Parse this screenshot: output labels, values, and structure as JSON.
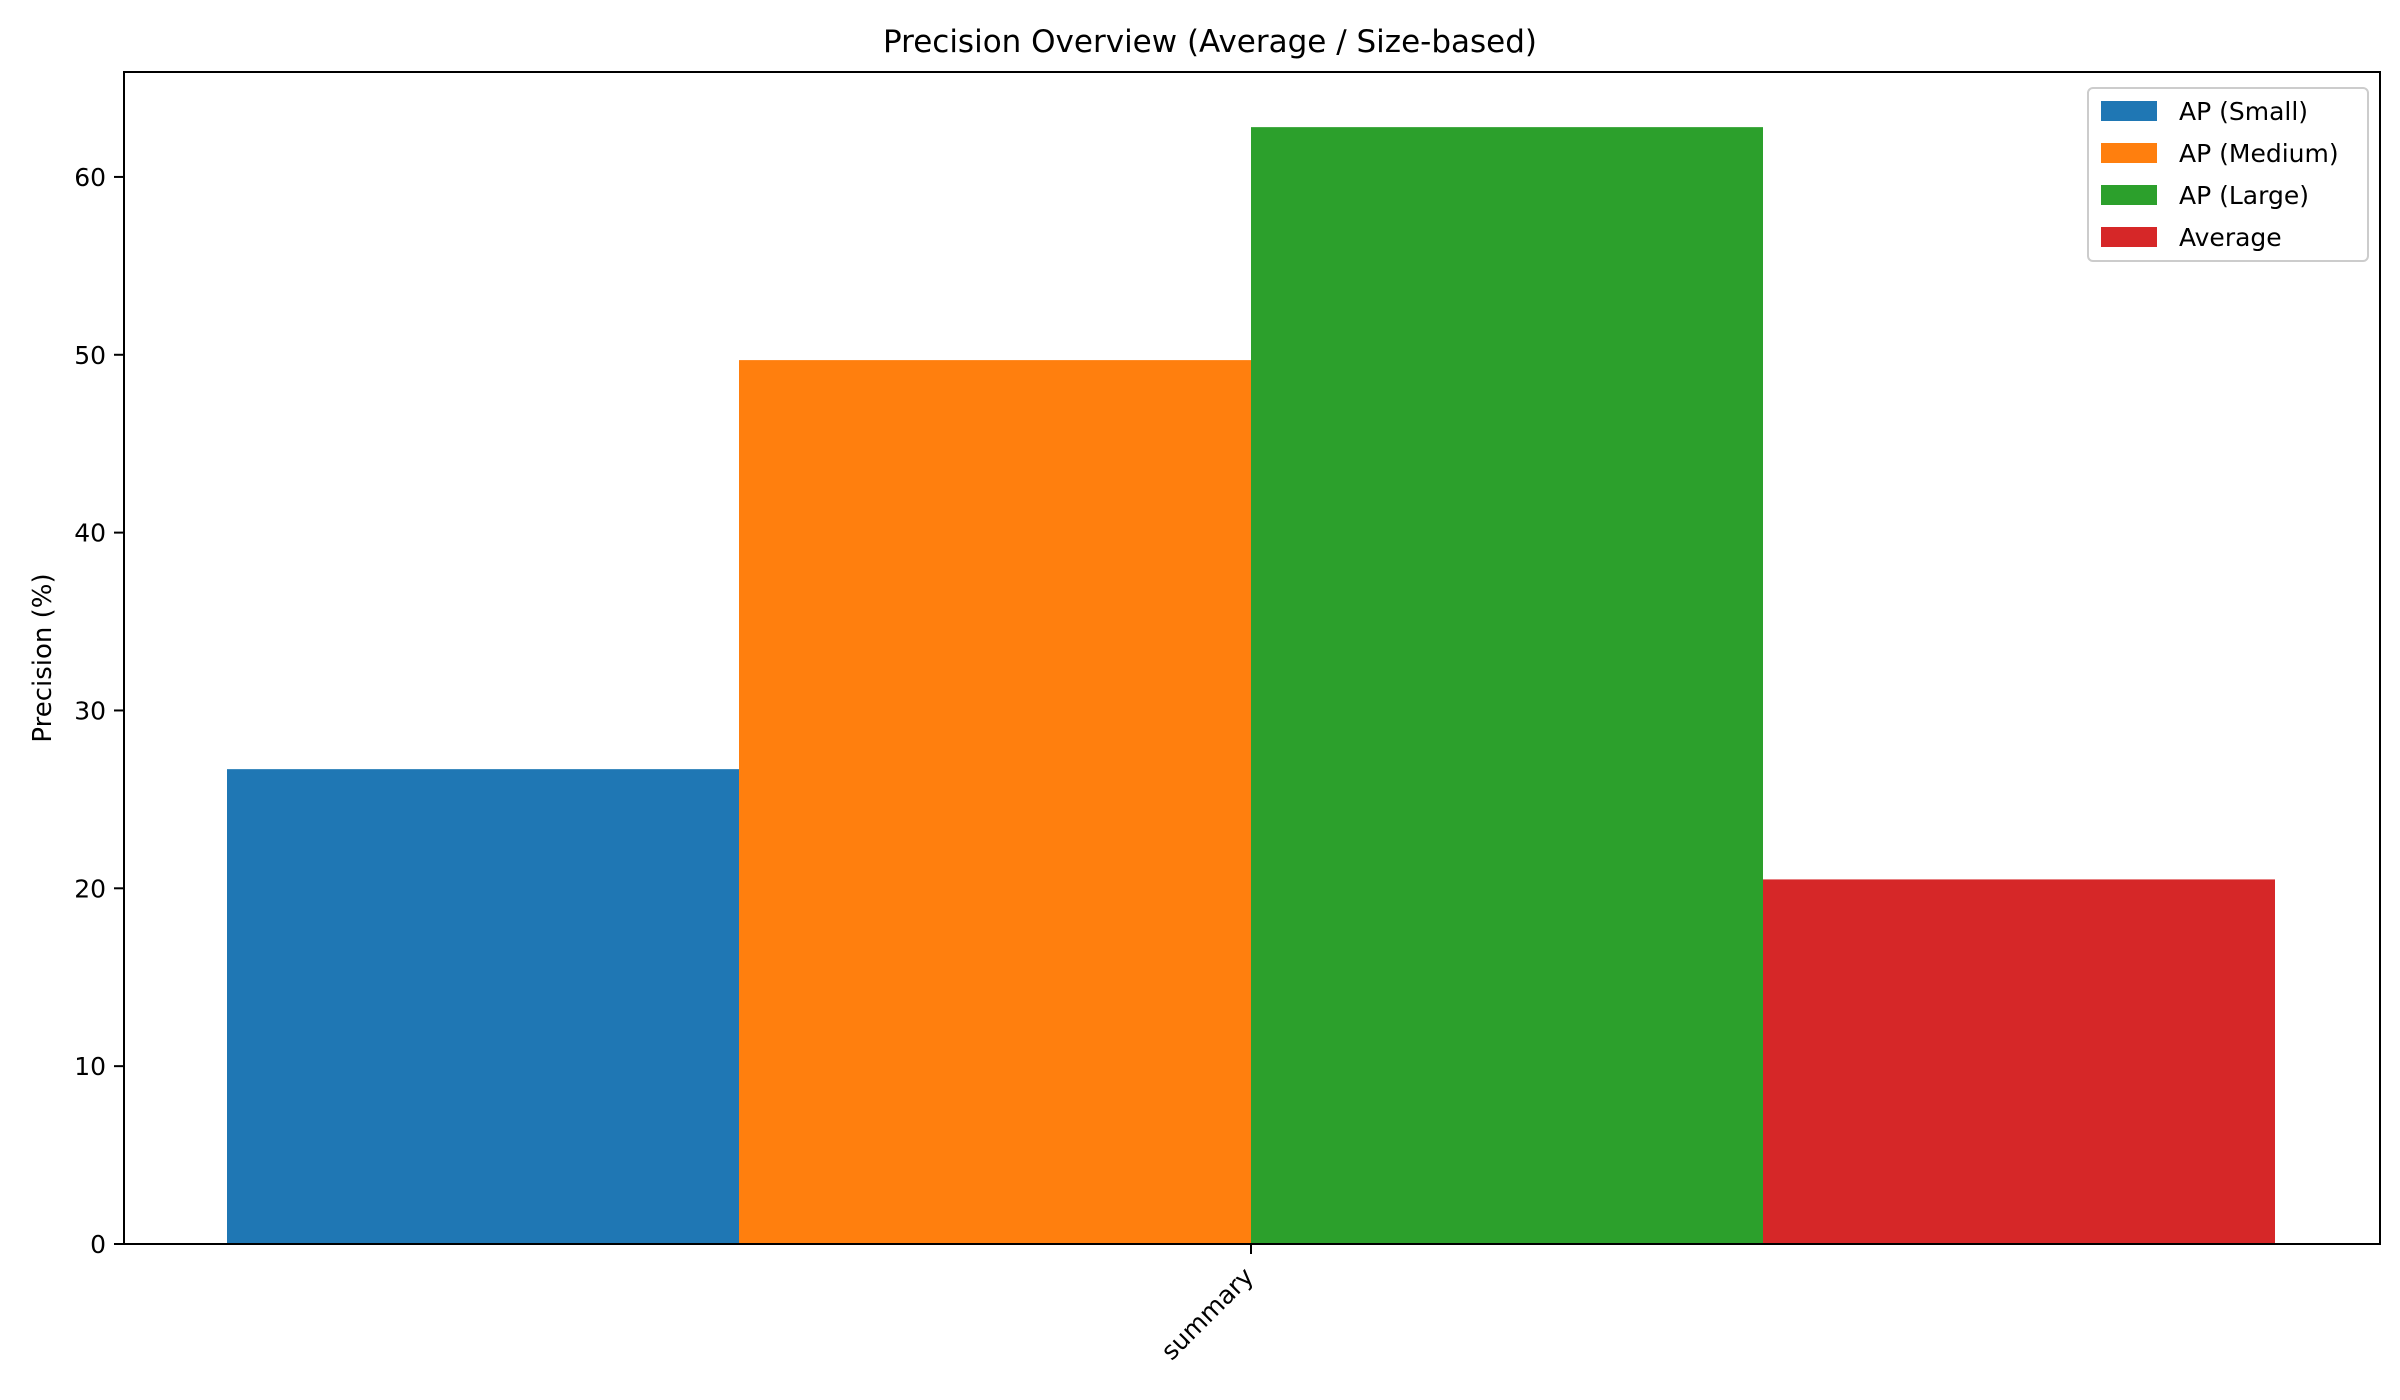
{
  "chart_data": {
    "type": "bar",
    "title": "Precision Overview (Average / Size-based)",
    "xlabel": "",
    "ylabel": "Precision (%)",
    "categories": [
      "summary"
    ],
    "ylim": [
      0,
      65.9
    ],
    "yticks": [
      0,
      10,
      20,
      30,
      40,
      50,
      60
    ],
    "grid": false,
    "legend_position": "top-right",
    "series": [
      {
        "name": "AP (Small)",
        "values": [
          26.7
        ],
        "color": "#1f77b4"
      },
      {
        "name": "AP (Medium)",
        "values": [
          49.7
        ],
        "color": "#ff7f0e"
      },
      {
        "name": "AP (Large)",
        "values": [
          62.8
        ],
        "color": "#2ca02c"
      },
      {
        "name": "Average",
        "values": [
          20.5
        ],
        "color": "#d62728"
      }
    ]
  }
}
